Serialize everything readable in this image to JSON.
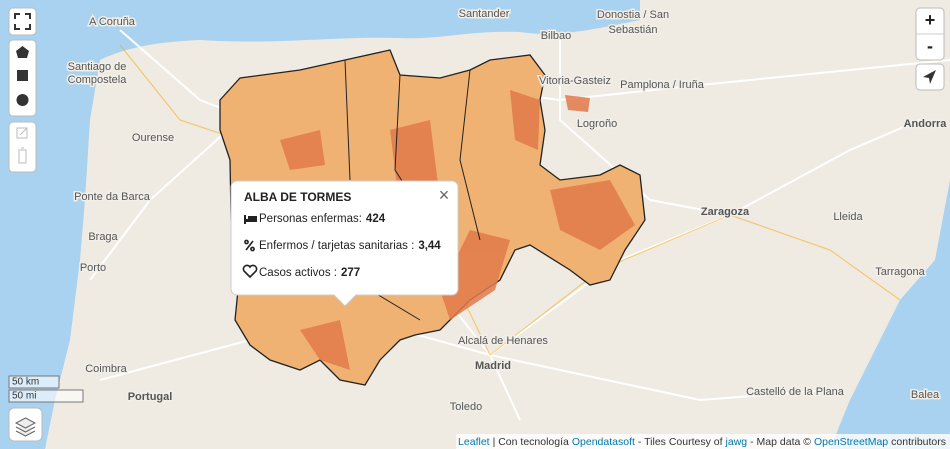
{
  "map": {
    "places": [
      "A Coruña",
      "Santander",
      "Donostia / San",
      "Sebastián",
      "Bilbao",
      "Santiago de",
      "Compostela",
      "Vitoria-Gasteiz",
      "Pamplona / Iruña",
      "Ourense",
      "Logroño",
      "Andorra",
      "Ponte da Barca",
      "Zaragoza",
      "Braga",
      "Porto",
      "Lleida",
      "Tarragona",
      "Coimbra",
      "Alcalá de Henares",
      "Madrid",
      "Portugal",
      "Toledo",
      "Castelló de la Plana",
      "Balea"
    ],
    "popup": {
      "title": "ALBA DE TORMES",
      "rows": [
        {
          "label": "Personas enfermas:",
          "value": 424
        },
        {
          "label": "Enfermos / tarjetas sanitarias :",
          "value": "3,44"
        },
        {
          "label": "Casos activos :",
          "value": 277
        }
      ]
    },
    "zoom": {
      "in": "+",
      "out": "-"
    },
    "scale": {
      "metric": "50 km",
      "imperial": "50 mi"
    },
    "attribution": [
      "Leaflet",
      "| Con tecnología",
      "Opendatasoft",
      "- Tiles Courtesy of",
      "jawg",
      "- Map data ©",
      "OpenStreetMap",
      "contributors"
    ]
  }
}
